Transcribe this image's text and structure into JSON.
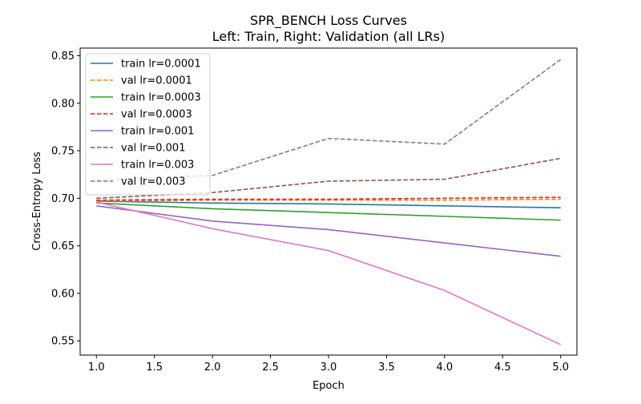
{
  "chart_data": {
    "type": "line",
    "title_line1": "SPR_BENCH Loss Curves",
    "title_line2": "Left: Train, Right: Validation (all LRs)",
    "xlabel": "Epoch",
    "ylabel": "Cross-Entropy Loss",
    "xlim": [
      0.86,
      5.14
    ],
    "ylim": [
      0.535,
      0.858
    ],
    "x_ticks": [
      1.0,
      1.5,
      2.0,
      2.5,
      3.0,
      3.5,
      4.0,
      4.5,
      5.0
    ],
    "x_tick_labels": [
      "1.0",
      "1.5",
      "2.0",
      "2.5",
      "3.0",
      "3.5",
      "4.0",
      "4.5",
      "5.0"
    ],
    "y_ticks": [
      0.55,
      0.6,
      0.65,
      0.7,
      0.75,
      0.8,
      0.85
    ],
    "y_tick_labels": [
      "0.55",
      "0.60",
      "0.65",
      "0.70",
      "0.75",
      "0.80",
      "0.85"
    ],
    "grid": false,
    "legend_position": "top-left",
    "x": [
      1,
      2,
      3,
      4,
      5
    ],
    "series": [
      {
        "name": "train lr=0.0001",
        "color": "#1f77b4",
        "dash": "solid",
        "values": [
          0.697,
          0.695,
          0.694,
          0.692,
          0.69
        ]
      },
      {
        "name": "val lr=0.0001",
        "color": "#ff7f0e",
        "dash": "dashed",
        "values": [
          0.697,
          0.698,
          0.698,
          0.698,
          0.699
        ]
      },
      {
        "name": "train lr=0.0003",
        "color": "#2ca02c",
        "dash": "solid",
        "values": [
          0.695,
          0.689,
          0.685,
          0.681,
          0.677
        ]
      },
      {
        "name": "val lr=0.0003",
        "color": "#d62728",
        "dash": "dashed",
        "values": [
          0.698,
          0.699,
          0.699,
          0.7,
          0.701
        ]
      },
      {
        "name": "train lr=0.001",
        "color": "#9467bd",
        "dash": "solid",
        "values": [
          0.692,
          0.676,
          0.667,
          0.653,
          0.639
        ]
      },
      {
        "name": "val lr=0.001",
        "color": "#8c564b",
        "dash": "dashed",
        "values": [
          0.7,
          0.706,
          0.718,
          0.72,
          0.742
        ]
      },
      {
        "name": "train lr=0.003",
        "color": "#e377c2",
        "dash": "solid",
        "values": [
          0.696,
          0.668,
          0.645,
          0.603,
          0.546
        ]
      },
      {
        "name": "val lr=0.003",
        "color": "#7f7f7f",
        "dash": "dashed",
        "values": [
          0.719,
          0.724,
          0.763,
          0.757,
          0.846
        ]
      }
    ]
  }
}
